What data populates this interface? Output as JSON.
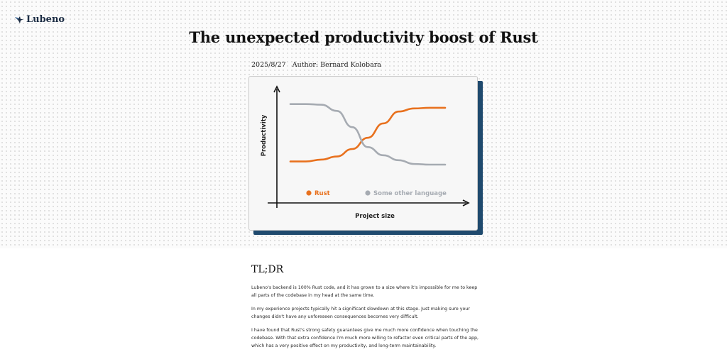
{
  "brand": {
    "name": "Lubeno",
    "icon": "bird-logo-icon"
  },
  "article": {
    "title": "The unexpected productivity boost of Rust",
    "date": "2025/8/27",
    "author": "Author: Bernard Kolobara"
  },
  "chart_data": {
    "type": "line",
    "xlabel": "Project size",
    "ylabel": "Productivity",
    "legend_position": "bottom-left",
    "series": [
      {
        "name": "Rust",
        "color": "#e8711e",
        "x": [
          0,
          0.1,
          0.2,
          0.3,
          0.4,
          0.5,
          0.6,
          0.7,
          0.8,
          0.9,
          1.0
        ],
        "values": [
          0.05,
          0.05,
          0.08,
          0.13,
          0.25,
          0.43,
          0.66,
          0.85,
          0.9,
          0.91,
          0.91
        ]
      },
      {
        "name": "Some other language",
        "color": "#a6abb2",
        "x": [
          0,
          0.1,
          0.2,
          0.3,
          0.4,
          0.5,
          0.6,
          0.7,
          0.8,
          0.9,
          1.0
        ],
        "values": [
          0.97,
          0.97,
          0.96,
          0.86,
          0.6,
          0.28,
          0.15,
          0.07,
          0.01,
          0.0,
          0.0
        ]
      }
    ]
  },
  "tldr": {
    "heading": "TL;DR",
    "paragraphs": [
      "Lubeno's backend is 100% Rust code, and it has grown to a size where it's impossible for me to keep all parts of the codebase in my head at the same time.",
      "In my experience projects typically hit a significant slowdown at this stage. Just making sure your changes didn't have any unforeseen consequences becomes very difficult.",
      "I have found that Rust's strong safety guarantees give me much more confidence when touching the codebase. With that extra confidence I'm much more willing to refactor even critical parts of the app, which has a very positive effect on my productivity, and long-term maintainability."
    ]
  }
}
